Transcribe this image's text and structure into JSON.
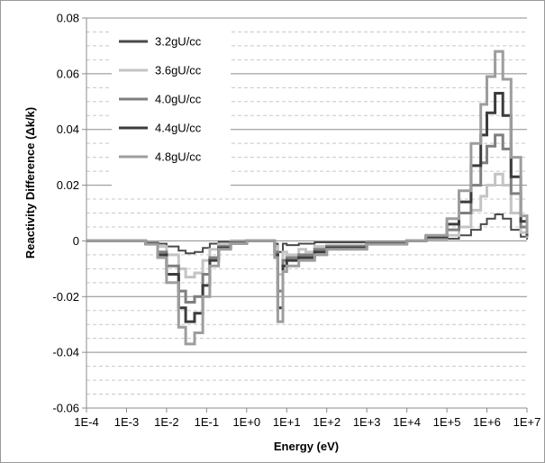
{
  "chart_data": {
    "type": "line",
    "xlabel": "Energy (eV)",
    "ylabel": "Reactivity Difference (Δk/k)",
    "x_scale": "log",
    "xlim": [
      0.0001,
      10000000
    ],
    "ylim": [
      -0.06,
      0.08
    ],
    "x_ticks": [
      "1E-4",
      "1E-3",
      "1E-2",
      "1E-1",
      "1E+0",
      "1E+1",
      "1E+2",
      "1E+3",
      "1E+4",
      "1E+5",
      "1E+6",
      "1E+7"
    ],
    "x_tick_values": [
      0.0001,
      0.001,
      0.01,
      0.1,
      1,
      10,
      100,
      1000,
      10000,
      100000,
      1000000,
      10000000
    ],
    "y_ticks": [
      "0.08",
      "0.06",
      "0.04",
      "0.02",
      "0",
      "-0.02",
      "-0.04",
      "-0.06"
    ],
    "y_tick_values": [
      0.08,
      0.06,
      0.04,
      0.02,
      0,
      -0.02,
      -0.04,
      -0.06
    ],
    "grid": {
      "major_y": true,
      "minor_y_dashed": true
    },
    "legend_position": "top-left",
    "series": [
      {
        "name": "3.2gU/cc",
        "color": "#4a4a4a",
        "x": [
          0.0001,
          0.001,
          0.003,
          0.006,
          0.01,
          0.02,
          0.03,
          0.05,
          0.08,
          0.12,
          0.2,
          0.4,
          1,
          3,
          5,
          6,
          8,
          10,
          20,
          30,
          50,
          100,
          1000,
          10000,
          30000,
          100000,
          200000,
          400000,
          700000,
          1000000,
          1600000,
          2500000,
          4000000,
          7000000,
          10000000
        ],
        "y": [
          0,
          0,
          -0.0003,
          -0.001,
          -0.002,
          -0.0035,
          -0.0045,
          -0.004,
          -0.0025,
          -0.001,
          -0.0003,
          0,
          0,
          0,
          -0.001,
          -0.004,
          -0.001,
          -0.0015,
          -0.001,
          -0.001,
          -0.0005,
          -0.0005,
          -0.0002,
          0,
          0.0002,
          0.0008,
          0.002,
          0.004,
          0.006,
          0.008,
          0.0095,
          0.008,
          0.004,
          0.0015,
          0.0005
        ]
      },
      {
        "name": "3.6gU/cc",
        "color": "#c4c4c4",
        "x": [
          0.0001,
          0.001,
          0.003,
          0.006,
          0.01,
          0.02,
          0.03,
          0.05,
          0.08,
          0.12,
          0.2,
          0.4,
          1,
          3,
          5,
          6,
          8,
          10,
          20,
          30,
          50,
          100,
          1000,
          10000,
          30000,
          100000,
          200000,
          400000,
          700000,
          1000000,
          1600000,
          2500000,
          4000000,
          7000000,
          10000000
        ],
        "y": [
          0,
          0,
          -0.0005,
          -0.002,
          -0.005,
          -0.01,
          -0.013,
          -0.0115,
          -0.007,
          -0.003,
          -0.0012,
          -0.0003,
          0,
          0,
          -0.002,
          -0.012,
          -0.004,
          -0.005,
          -0.003,
          -0.004,
          -0.002,
          -0.0015,
          -0.0005,
          0,
          0.0005,
          0.002,
          0.005,
          0.011,
          0.016,
          0.02,
          0.024,
          0.02,
          0.01,
          0.003,
          0.001
        ]
      },
      {
        "name": "4.0gU/cc",
        "color": "#7f7f7f",
        "x": [
          0.0001,
          0.001,
          0.003,
          0.006,
          0.01,
          0.02,
          0.03,
          0.05,
          0.08,
          0.12,
          0.2,
          0.4,
          1,
          3,
          5,
          6,
          8,
          10,
          20,
          30,
          50,
          100,
          1000,
          10000,
          30000,
          100000,
          200000,
          400000,
          700000,
          1000000,
          1600000,
          2500000,
          4000000,
          7000000,
          10000000
        ],
        "y": [
          0,
          0,
          -0.0008,
          -0.004,
          -0.009,
          -0.018,
          -0.022,
          -0.02,
          -0.012,
          -0.006,
          -0.002,
          -0.0006,
          0,
          0,
          -0.004,
          -0.018,
          -0.007,
          -0.006,
          -0.005,
          -0.005,
          -0.003,
          -0.002,
          -0.0008,
          0,
          0.001,
          0.004,
          0.01,
          0.02,
          0.028,
          0.034,
          0.038,
          0.033,
          0.017,
          0.005,
          0.0015
        ]
      },
      {
        "name": "4.4gU/cc",
        "color": "#3c3c3c",
        "x": [
          0.0001,
          0.001,
          0.003,
          0.006,
          0.01,
          0.02,
          0.03,
          0.05,
          0.08,
          0.12,
          0.2,
          0.4,
          1,
          3,
          5,
          6,
          8,
          10,
          20,
          30,
          50,
          100,
          1000,
          10000,
          30000,
          100000,
          200000,
          400000,
          700000,
          1000000,
          1600000,
          2500000,
          4000000,
          7000000,
          10000000
        ],
        "y": [
          0,
          0,
          -0.001,
          -0.005,
          -0.012,
          -0.024,
          -0.029,
          -0.026,
          -0.016,
          -0.007,
          -0.0025,
          -0.0008,
          0,
          0,
          -0.005,
          -0.024,
          -0.009,
          -0.007,
          -0.006,
          -0.006,
          -0.004,
          -0.0025,
          -0.001,
          0,
          0.0015,
          0.006,
          0.014,
          0.027,
          0.038,
          0.046,
          0.053,
          0.045,
          0.023,
          0.007,
          0.002
        ]
      },
      {
        "name": "4.8gU/cc",
        "color": "#9d9d9d",
        "x": [
          0.0001,
          0.001,
          0.003,
          0.006,
          0.01,
          0.02,
          0.03,
          0.05,
          0.08,
          0.12,
          0.2,
          0.4,
          1,
          3,
          5,
          6,
          8,
          10,
          20,
          30,
          50,
          100,
          1000,
          10000,
          30000,
          100000,
          200000,
          400000,
          700000,
          1000000,
          1600000,
          2500000,
          4000000,
          7000000,
          10000000
        ],
        "y": [
          0,
          0,
          -0.0012,
          -0.006,
          -0.015,
          -0.031,
          -0.037,
          -0.033,
          -0.02,
          -0.009,
          -0.003,
          -0.001,
          0,
          0,
          -0.006,
          -0.029,
          -0.011,
          -0.009,
          -0.007,
          -0.007,
          -0.005,
          -0.003,
          -0.0012,
          0,
          0.002,
          0.008,
          0.018,
          0.035,
          0.049,
          0.059,
          0.068,
          0.058,
          0.03,
          0.009,
          0.0025
        ]
      }
    ]
  }
}
